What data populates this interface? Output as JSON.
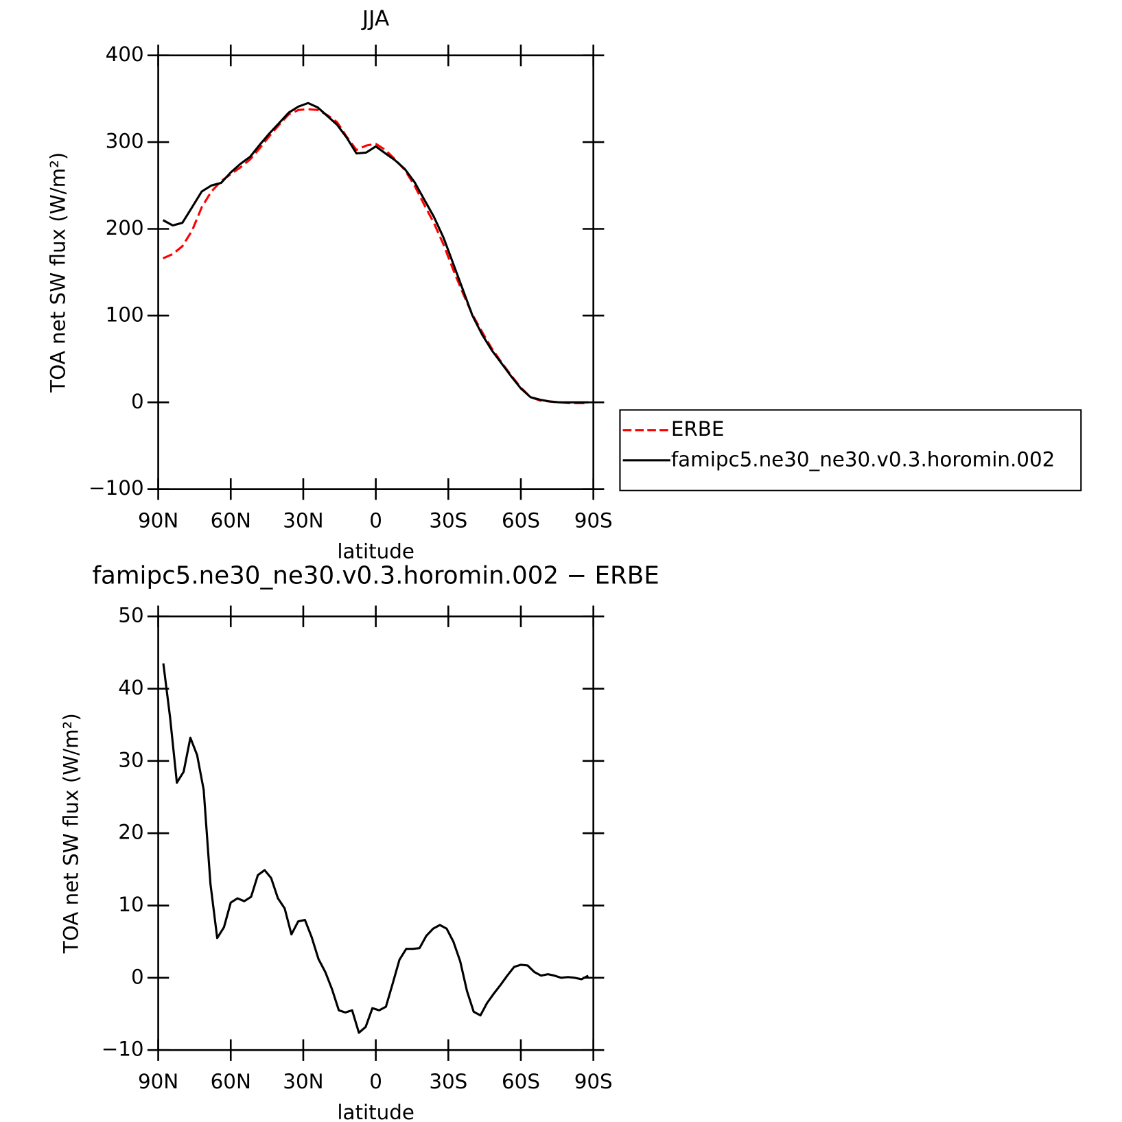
{
  "chart_data": [
    {
      "type": "line",
      "title": "JJA",
      "xlabel": "latitude",
      "ylabel": "TOA net SW flux (W/m²)",
      "x": [
        88,
        84,
        80,
        76,
        72,
        68,
        64,
        60,
        56,
        52,
        48,
        44,
        40,
        36,
        32,
        28,
        24,
        20,
        16,
        12,
        8,
        4,
        0,
        -4,
        -8,
        -12,
        -16,
        -20,
        -24,
        -28,
        -32,
        -36,
        -40,
        -44,
        -48,
        -52,
        -56,
        -60,
        -64,
        -68,
        -72,
        -76,
        -80,
        -84,
        -88
      ],
      "series": [
        {
          "name": "ERBE",
          "color": "#ff0000",
          "linestyle": "dashed",
          "values": [
            166,
            171,
            180,
            198,
            225,
            243,
            255,
            263,
            271,
            280,
            293,
            307,
            320,
            332,
            337,
            338,
            337,
            331,
            323,
            306,
            291,
            296,
            298,
            291,
            280,
            268,
            250,
            228,
            207,
            182,
            153,
            126,
            101,
            81,
            62,
            46,
            31,
            17,
            6,
            2,
            1,
            0,
            -1,
            -1,
            -1
          ]
        },
        {
          "name": "famipc5.ne30_ne30.v0.3.horomin.002",
          "color": "#000000",
          "linestyle": "solid",
          "values": [
            210,
            204,
            207,
            225,
            243,
            250,
            253,
            265,
            275,
            283,
            297,
            310,
            322,
            334,
            341,
            345,
            340,
            330,
            320,
            305,
            287,
            288,
            295,
            287,
            279,
            269,
            254,
            234,
            214,
            190,
            160,
            130,
            100,
            78,
            60,
            45,
            30,
            16,
            6,
            3,
            1,
            0,
            0,
            0,
            0
          ]
        }
      ],
      "xlim": [
        90,
        -90
      ],
      "xticks": [
        {
          "value": 90,
          "label": "90N"
        },
        {
          "value": 60,
          "label": "60N"
        },
        {
          "value": 30,
          "label": "30N"
        },
        0,
        {
          "value": -30,
          "label": "30S"
        },
        {
          "value": -60,
          "label": "60S"
        },
        {
          "value": -90,
          "label": "90S"
        }
      ],
      "ylim": [
        -100,
        400
      ],
      "yticks": [
        {
          "value": -100,
          "label": "−100"
        },
        0,
        100,
        200,
        300,
        400
      ],
      "legend": "right"
    },
    {
      "type": "line",
      "title": "famipc5.ne30_ne30.v0.3.horomin.002 − ERBE",
      "xlabel": "latitude",
      "ylabel": "TOA net SW flux (W/m²)",
      "x": [
        87.9,
        85.1,
        82.3,
        79.5,
        76.7,
        73.9,
        71.2,
        68.4,
        65.6,
        62.8,
        60.0,
        57.2,
        54.4,
        51.6,
        48.8,
        46.0,
        43.3,
        40.5,
        37.7,
        34.9,
        32.1,
        29.3,
        26.5,
        23.7,
        20.9,
        18.1,
        15.3,
        12.6,
        9.8,
        7.0,
        4.2,
        1.4,
        -1.4,
        -4.2,
        -7.0,
        -9.8,
        -12.6,
        -15.3,
        -18.1,
        -20.9,
        -23.7,
        -26.5,
        -29.3,
        -32.1,
        -34.9,
        -37.7,
        -40.5,
        -43.3,
        -46.0,
        -48.8,
        -51.6,
        -54.4,
        -57.2,
        -60.0,
        -62.8,
        -65.6,
        -68.4,
        -71.2,
        -73.9,
        -76.7,
        -79.5,
        -82.3,
        -85.1,
        -87.9
      ],
      "values": [
        43.5,
        36,
        27,
        28.5,
        33.2,
        30.8,
        26,
        13,
        5.5,
        7,
        10.4,
        11,
        10.6,
        11.2,
        14.2,
        14.9,
        13.8,
        11,
        9.6,
        6,
        7.8,
        8,
        5.6,
        2.6,
        0.8,
        -1.6,
        -4.5,
        -4.8,
        -4.5,
        -7.6,
        -6.8,
        -4.2,
        -4.5,
        -4,
        -0.8,
        2.5,
        4,
        4,
        4.1,
        5.8,
        6.8,
        7.3,
        6.8,
        5,
        2.3,
        -1.8,
        -4.7,
        -5.2,
        -3.5,
        -2.2,
        -1,
        0.3,
        1.5,
        1.8,
        1.7,
        0.8,
        0.3,
        0.5,
        0.3,
        0,
        0.1,
        0,
        -0.2,
        0.3
      ],
      "color": "#000000",
      "xlim": [
        90,
        -90
      ],
      "xticks": [
        {
          "value": 90,
          "label": "90N"
        },
        {
          "value": 60,
          "label": "60N"
        },
        {
          "value": 30,
          "label": "30N"
        },
        0,
        {
          "value": -30,
          "label": "30S"
        },
        {
          "value": -60,
          "label": "60S"
        },
        {
          "value": -90,
          "label": "90S"
        }
      ],
      "ylim": [
        -10,
        50
      ],
      "yticks": [
        {
          "value": -10,
          "label": "−10"
        },
        0,
        10,
        20,
        30,
        40,
        50
      ]
    }
  ]
}
